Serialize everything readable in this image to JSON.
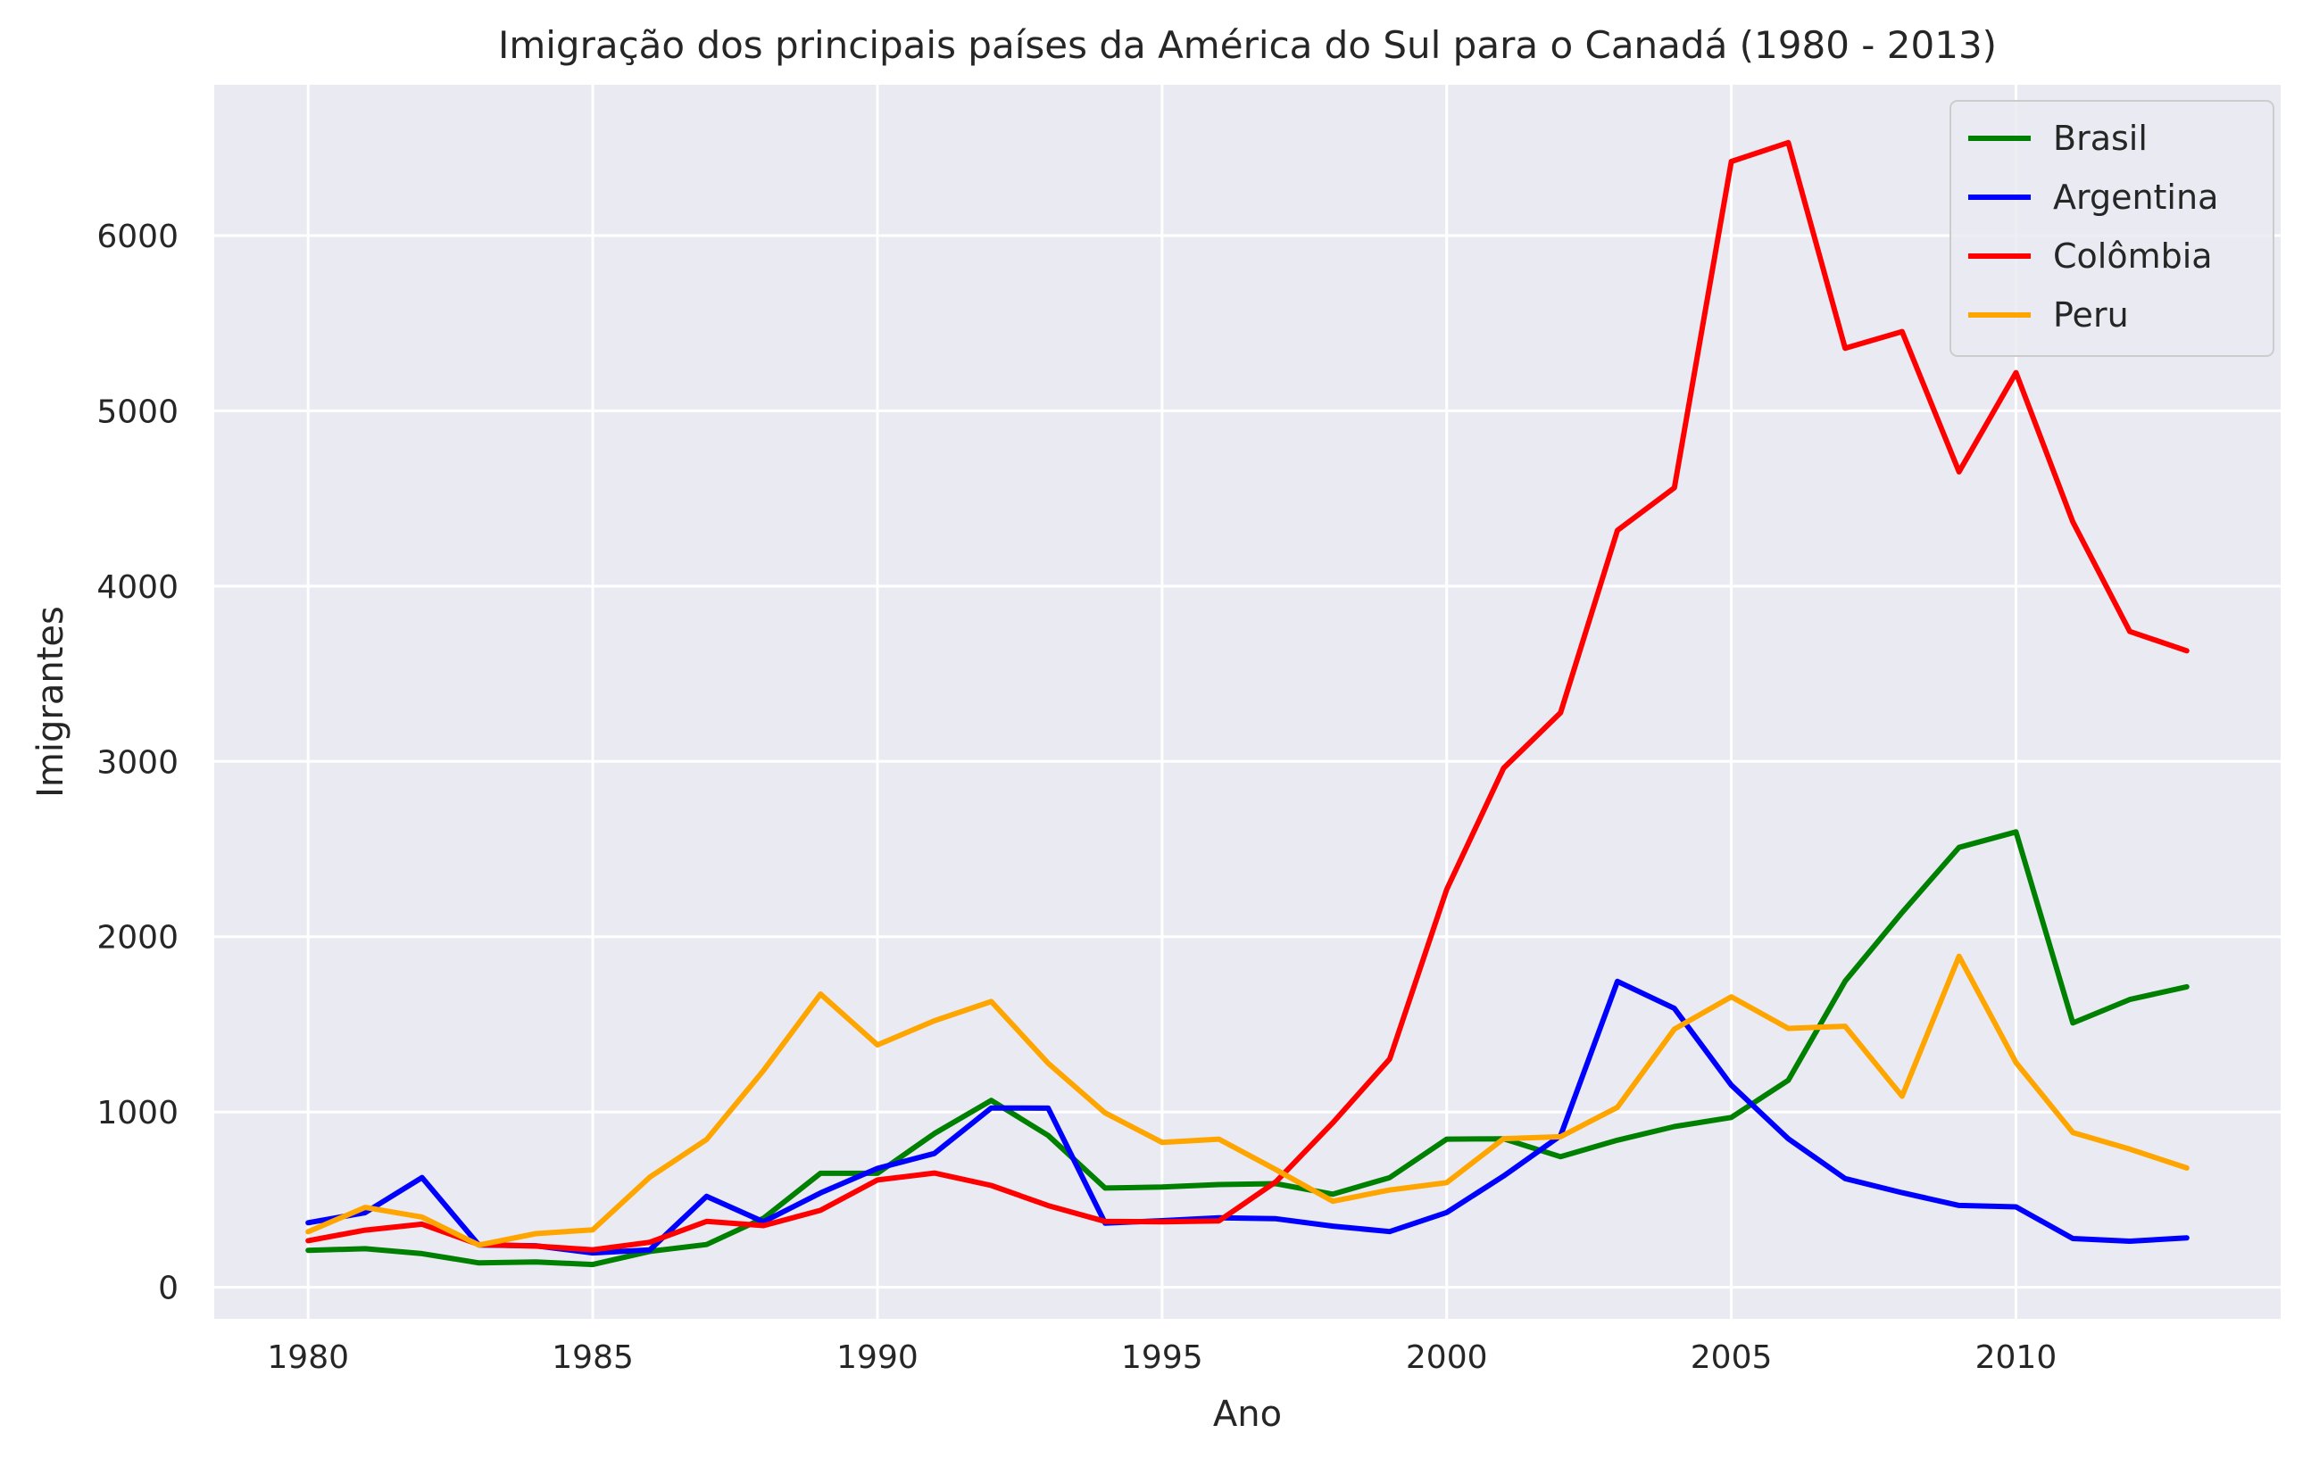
{
  "chart_data": {
    "type": "line",
    "title": "Imigração dos principais países da América do Sul para o Canadá (1980 - 2013)",
    "xlabel": "Ano",
    "ylabel": "Imigrantes",
    "xlim": [
      1978.35,
      2014.65
    ],
    "ylim": [
      -180,
      6860
    ],
    "xticks": [
      1980,
      1985,
      1990,
      1995,
      2000,
      2005,
      2010
    ],
    "yticks": [
      0,
      1000,
      2000,
      3000,
      4000,
      5000,
      6000
    ],
    "grid": true,
    "legend_position": "top-right",
    "background_color": "#eaeaf2",
    "grid_color": "#ffffff",
    "x": [
      1980,
      1981,
      1982,
      1983,
      1984,
      1985,
      1986,
      1987,
      1988,
      1989,
      1990,
      1991,
      1992,
      1993,
      1994,
      1995,
      1996,
      1997,
      1998,
      1999,
      2000,
      2001,
      2002,
      2003,
      2004,
      2005,
      2006,
      2007,
      2008,
      2009,
      2010,
      2011,
      2012,
      2013
    ],
    "series": [
      {
        "name": "Brasil",
        "color": "#008000",
        "values": [
          211,
          220,
          192,
          139,
          145,
          130,
          205,
          244,
          394,
          650,
          650,
          877,
          1066,
          866,
          566,
          572,
          586,
          591,
          531,
          626,
          845,
          847,
          745,
          839,
          917,
          969,
          1181,
          1746,
          2138,
          2509,
          2598,
          1508,
          1642,
          1714
        ]
      },
      {
        "name": "Argentina",
        "color": "#0000ff",
        "values": [
          368,
          426,
          626,
          241,
          237,
          196,
          213,
          519,
          374,
          538,
          678,
          763,
          1023,
          1022,
          366,
          380,
          396,
          391,
          349,
          318,
          427,
          635,
          865,
          1745,
          1591,
          1153,
          847,
          620,
          540,
          467,
          459,
          278,
          263,
          282
        ]
      },
      {
        "name": "Colômbia",
        "color": "#ff0000",
        "values": [
          266,
          326,
          360,
          244,
          235,
          214,
          257,
          376,
          352,
          439,
          612,
          652,
          581,
          466,
          376,
          374,
          379,
          602,
          939,
          1303,
          2269,
          2962,
          3278,
          4318,
          4561,
          6422,
          6530,
          5357,
          5452,
          4652,
          5218,
          4366,
          3741,
          3631
        ]
      },
      {
        "name": "Peru",
        "color": "#ffa500",
        "values": [
          317,
          456,
          401,
          241,
          306,
          328,
          628,
          843,
          1237,
          1673,
          1383,
          1520,
          1630,
          1278,
          995,
          827,
          845,
          671,
          491,
          555,
          597,
          848,
          859,
          1027,
          1473,
          1657,
          1477,
          1489,
          1090,
          1888,
          1282,
          883,
          788,
          681
        ]
      }
    ]
  }
}
